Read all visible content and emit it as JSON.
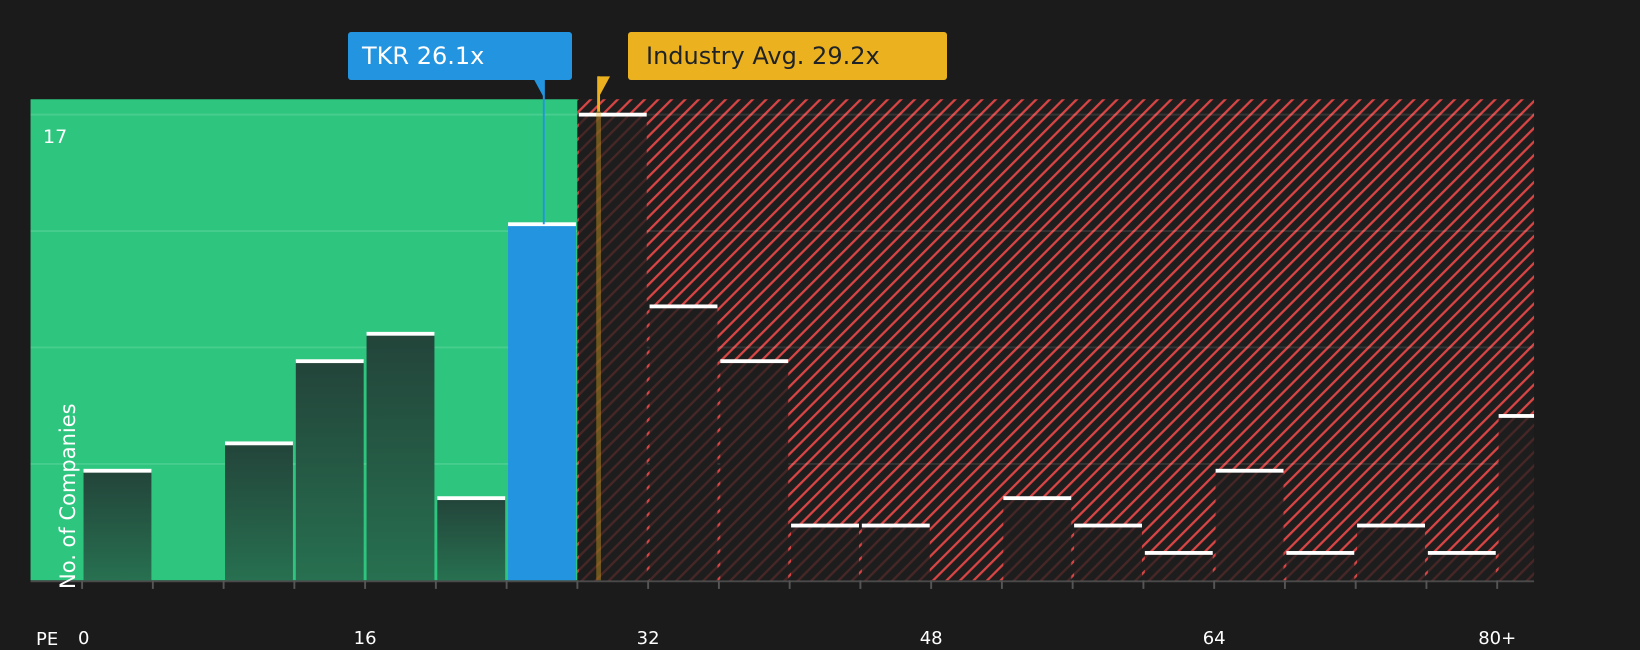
{
  "callouts": {
    "company": {
      "label": "TKR 26.1x",
      "ticker": "TKR",
      "value": 26.1,
      "color": "#2394e0"
    },
    "industry": {
      "label": "Industry Avg. 29.2x",
      "value": 29.2,
      "color": "#ecb11f"
    }
  },
  "axis": {
    "x_prefix": "PE",
    "x_ticks": [
      "0",
      "16",
      "32",
      "48",
      "64",
      "80+"
    ],
    "y_max_label": "17",
    "y_title": "No. of Companies"
  },
  "colors": {
    "background": "#1b1b1b",
    "undervalued_region": "#2ec67f",
    "overvalued_stripe": "#d94545",
    "company_bar": "#2394e0",
    "bar_top": "#ffffff"
  },
  "chart_data": {
    "type": "bar",
    "title": "",
    "xlabel": "PE",
    "ylabel": "No. of Companies",
    "categories": [
      "0-4",
      "4-8",
      "8-12",
      "12-16",
      "16-20",
      "20-24",
      "24-28",
      "28-32",
      "32-36",
      "36-40",
      "40-44",
      "44-48",
      "48-52",
      "52-56",
      "56-60",
      "60-64",
      "64-68",
      "68-72",
      "72-76",
      "76-80",
      "80+"
    ],
    "bin_starts": [
      0,
      4,
      8,
      12,
      16,
      20,
      24,
      28,
      32,
      36,
      40,
      44,
      48,
      52,
      56,
      60,
      64,
      68,
      72,
      76,
      80
    ],
    "values": [
      4,
      0,
      5,
      8,
      9,
      3,
      13,
      17,
      10,
      8,
      2,
      2,
      0,
      3,
      2,
      1,
      4,
      1,
      2,
      1,
      6
    ],
    "highlight_bin": "24-28",
    "x_tick_values": [
      0,
      16,
      32,
      48,
      64,
      80
    ],
    "ylim": [
      0,
      17
    ],
    "y_gridlines": [
      4.25,
      8.5,
      12.75,
      17
    ],
    "markers": [
      {
        "name": "TKR",
        "value": 26.1
      },
      {
        "name": "Industry Avg.",
        "value": 29.2
      }
    ],
    "regions": [
      {
        "name": "undervalued",
        "from": -2.9,
        "to": 28,
        "color": "#2ec67f"
      },
      {
        "name": "overvalued",
        "from": 28,
        "to": 82.1,
        "color": "#d94545",
        "pattern": "hatched"
      }
    ],
    "grid": true,
    "legend": "none"
  }
}
